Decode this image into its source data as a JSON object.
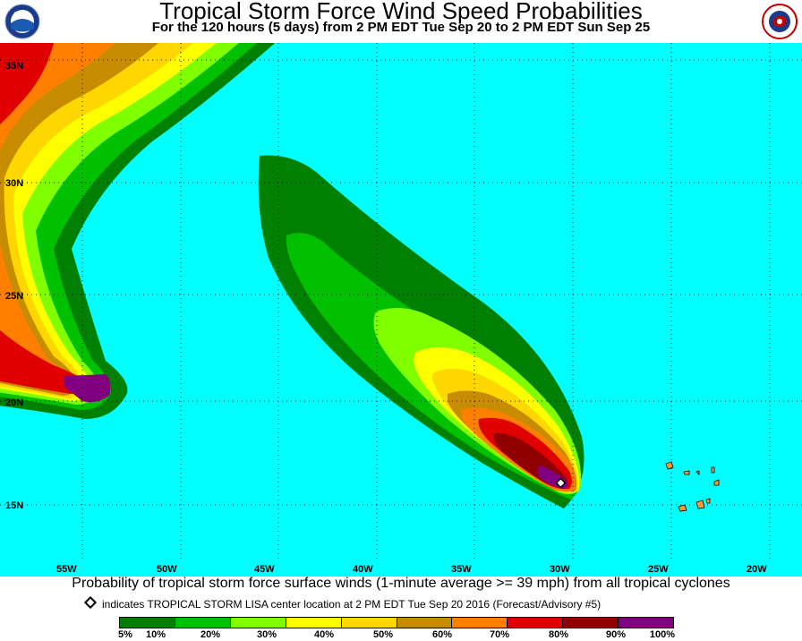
{
  "header": {
    "title": "Tropical Storm Force Wind Speed Probabilities",
    "subtitle": "For the 120 hours (5 days) from 2 PM EDT Tue Sep 20 to 2 PM EDT Sun Sep 25",
    "left_logo": "noaa-logo",
    "right_logo": "national-weather-service-logo"
  },
  "map": {
    "ocean_color": "#00ffff",
    "grid_color": "#000000",
    "latitude_labels": [
      "35N",
      "30N",
      "25N",
      "20N",
      "15N"
    ],
    "longitude_labels": [
      "55W",
      "50W",
      "45W",
      "40W",
      "35W",
      "30W",
      "25W",
      "20W"
    ],
    "land_color": "#ff9933",
    "storm_center_marker": "white-diamond"
  },
  "caption": "Probability of tropical storm force surface winds (1-minute average >= 39 mph) from all tropical cyclones",
  "center_note": "indicates TROPICAL STORM LISA center location at 2 PM EDT Tue Sep 20 2016 (Forecast/Advisory #5)",
  "legend": {
    "colors": [
      "#008000",
      "#00c000",
      "#80ff00",
      "#ffff00",
      "#ffd700",
      "#c88c00",
      "#ff8000",
      "#e00000",
      "#900000",
      "#800080"
    ],
    "labels": [
      "5%",
      "10%",
      "20%",
      "30%",
      "40%",
      "50%",
      "60%",
      "70%",
      "80%",
      "90%",
      "100%"
    ]
  }
}
